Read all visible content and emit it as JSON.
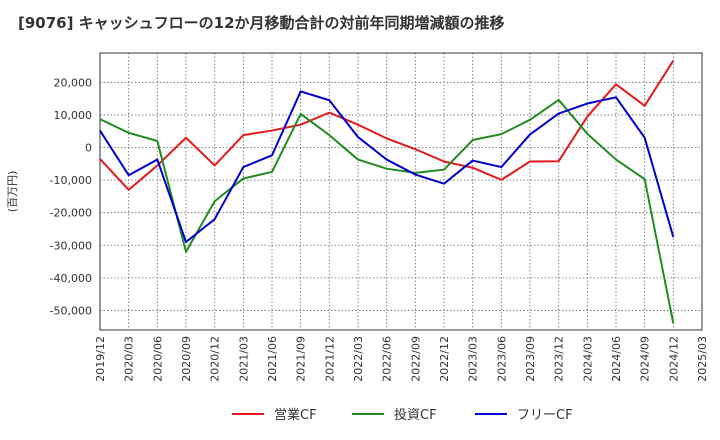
{
  "chart_data": {
    "type": "line",
    "title": "[9076]  キャッシュフローの12か月移動合計の対前年同期増減額の推移",
    "ylabel": "(百万円)",
    "xlabel": "",
    "ylim": [
      -56000,
      29000
    ],
    "yticks": [
      20000,
      10000,
      0,
      -10000,
      -20000,
      -30000,
      -40000,
      -50000
    ],
    "ytick_labels": [
      "20,000",
      "10,000",
      "0",
      "-10,000",
      "-20,000",
      "-30,000",
      "-40,000",
      "-50,000"
    ],
    "x": [
      "2019/12",
      "2020/03",
      "2020/06",
      "2020/09",
      "2020/12",
      "2021/03",
      "2021/06",
      "2021/09",
      "2021/12",
      "2022/03",
      "2022/06",
      "2022/09",
      "2022/12",
      "2023/03",
      "2023/06",
      "2023/09",
      "2023/12",
      "2024/03",
      "2024/06",
      "2024/09",
      "2024/12",
      "2025/03"
    ],
    "grid": true,
    "legend_position": "bottom",
    "series": [
      {
        "name": "営業CF",
        "color": "#e31a1c",
        "values": [
          -3500,
          -13000,
          -5500,
          3000,
          -5500,
          3800,
          5200,
          7000,
          10700,
          7000,
          2800,
          -500,
          -4300,
          -6200,
          -9900,
          -4300,
          -4200,
          9500,
          19400,
          12800,
          26700,
          null
        ]
      },
      {
        "name": "投資CF",
        "color": "#228b22",
        "values": [
          8700,
          4500,
          2000,
          -32000,
          -16500,
          -9500,
          -7500,
          10300,
          3800,
          -3700,
          -6500,
          -7800,
          -6800,
          2300,
          4100,
          8500,
          14600,
          4200,
          -3700,
          -9700,
          -54000,
          null
        ]
      },
      {
        "name": "フリーCF",
        "color": "#0000cd",
        "values": [
          5200,
          -8500,
          -3700,
          -29000,
          -22000,
          -6000,
          -2400,
          17200,
          14500,
          3200,
          -3700,
          -8300,
          -11100,
          -4000,
          -6000,
          4000,
          10400,
          13500,
          15400,
          3000,
          -27500,
          null
        ]
      }
    ]
  }
}
